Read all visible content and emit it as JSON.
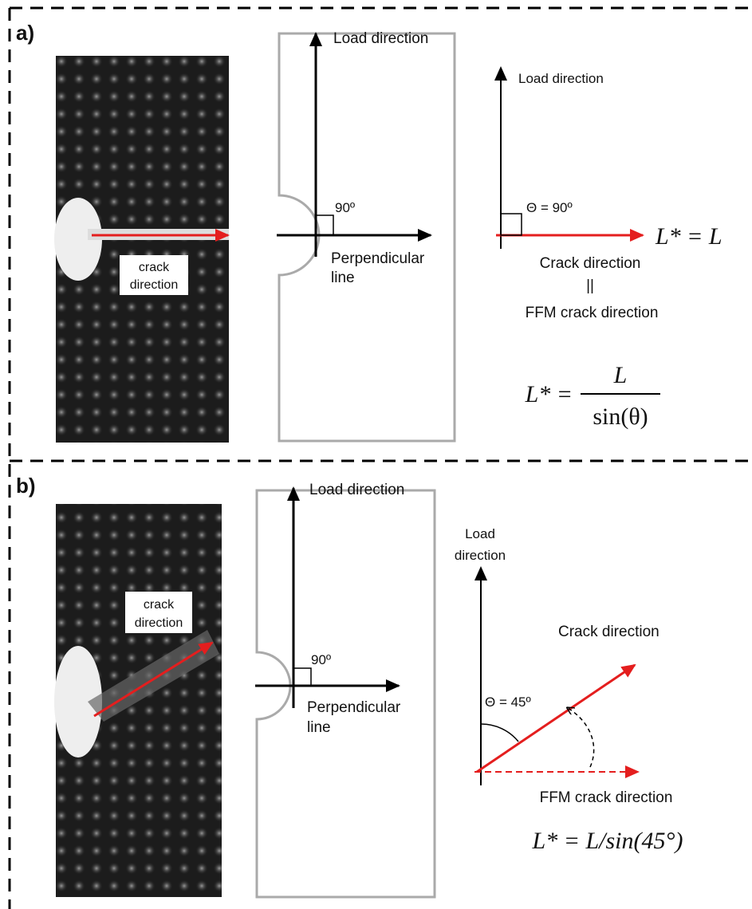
{
  "panels": [
    {
      "label": "a)",
      "photo_label": [
        "crack",
        "direction"
      ],
      "specimen": {
        "load": "Load direction",
        "angle": "90º",
        "perpendicular": [
          "Perpendicular",
          "line"
        ]
      },
      "vector": {
        "load": [
          "Load direction"
        ],
        "angle": "Θ = 90º",
        "result": "L* = L",
        "crack": "Crack direction",
        "equal": "||",
        "ffm": "FFM crack direction",
        "formula": {
          "lhs": "L* =",
          "numerator": "L",
          "denominator": "sin(θ)"
        }
      }
    },
    {
      "label": "b)",
      "photo_label": [
        "crack",
        "direction"
      ],
      "specimen": {
        "load": "Load direction",
        "angle": "90º",
        "perpendicular": [
          "Perpendicular",
          "line"
        ]
      },
      "vector": {
        "load": [
          "Load",
          "direction"
        ],
        "angle": "Θ = 45º",
        "crack": "Crack direction",
        "ffm": "FFM crack direction",
        "formula": {
          "text": "L* = L/sin(45°)"
        }
      }
    }
  ]
}
